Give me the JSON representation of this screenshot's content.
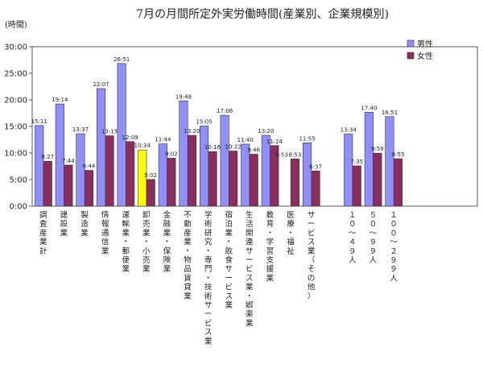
{
  "chart_data": {
    "type": "bar",
    "title": "7月の月間所定外実労働時間(産業別、企業規模別)",
    "ylabel": "(時間)",
    "ylim": [
      0,
      30
    ],
    "yticks": [
      "0:00",
      "5:00",
      "10:00",
      "15:00",
      "20:00",
      "25:00",
      "30:00"
    ],
    "legend_position": "top-right",
    "grid": false,
    "highlight_category_index": 5,
    "highlight_color": "#ffff00",
    "series": [
      {
        "name": "男性",
        "color": "#8f8fff",
        "values": [
          15.18,
          19.23,
          13.62,
          22.12,
          26.85,
          10.57,
          11.73,
          19.8,
          15.08,
          17.1,
          11.67,
          13.33,
          null,
          11.92,
          null,
          13.57,
          17.67,
          16.85
        ],
        "labels": [
          "15:11",
          "19:14",
          "13:37",
          "22:07",
          "26:51",
          "10:34",
          "11:44",
          "19:48",
          "15:05",
          "17:06",
          "11:40",
          "13:20",
          "",
          "11:55",
          "",
          "13:34",
          "17:40",
          "16:51"
        ]
      },
      {
        "name": "女性",
        "color": "#8b2d5e",
        "values": [
          8.45,
          7.73,
          6.73,
          13.25,
          12.15,
          5.03,
          9.03,
          13.33,
          10.27,
          10.37,
          9.77,
          11.4,
          8.88,
          6.62,
          null,
          7.58,
          9.98,
          8.92
        ],
        "labels": [
          "8:27",
          "7:44",
          "6:44",
          "13:15",
          "12:09",
          "5:02",
          "9:02",
          "13:20",
          "10:16",
          "10:22",
          "9:46",
          "11:24",
          "8:53",
          "6:37",
          "",
          "7:35",
          "9:59",
          "8:55"
        ]
      }
    ],
    "categories": [
      "調査産業計",
      "建設業",
      "製造業",
      "情報通信業",
      "運輸業・郵便業",
      "卸売業・小売業",
      "金融業・保険業",
      "不動産業・物品賃貸業",
      "学術研究・専門・技術サービス業",
      "宿泊業・飲食サービス業",
      "生活関連サービス業・娯楽業",
      "教育・学習支援業",
      "医療・福祉",
      "サービス業（その他）",
      "",
      "１０～４９人",
      "５０～９９人",
      "１００～２９９人"
    ],
    "extra_labels": [
      {
        "category_index": 12,
        "text": "8:53"
      }
    ]
  }
}
